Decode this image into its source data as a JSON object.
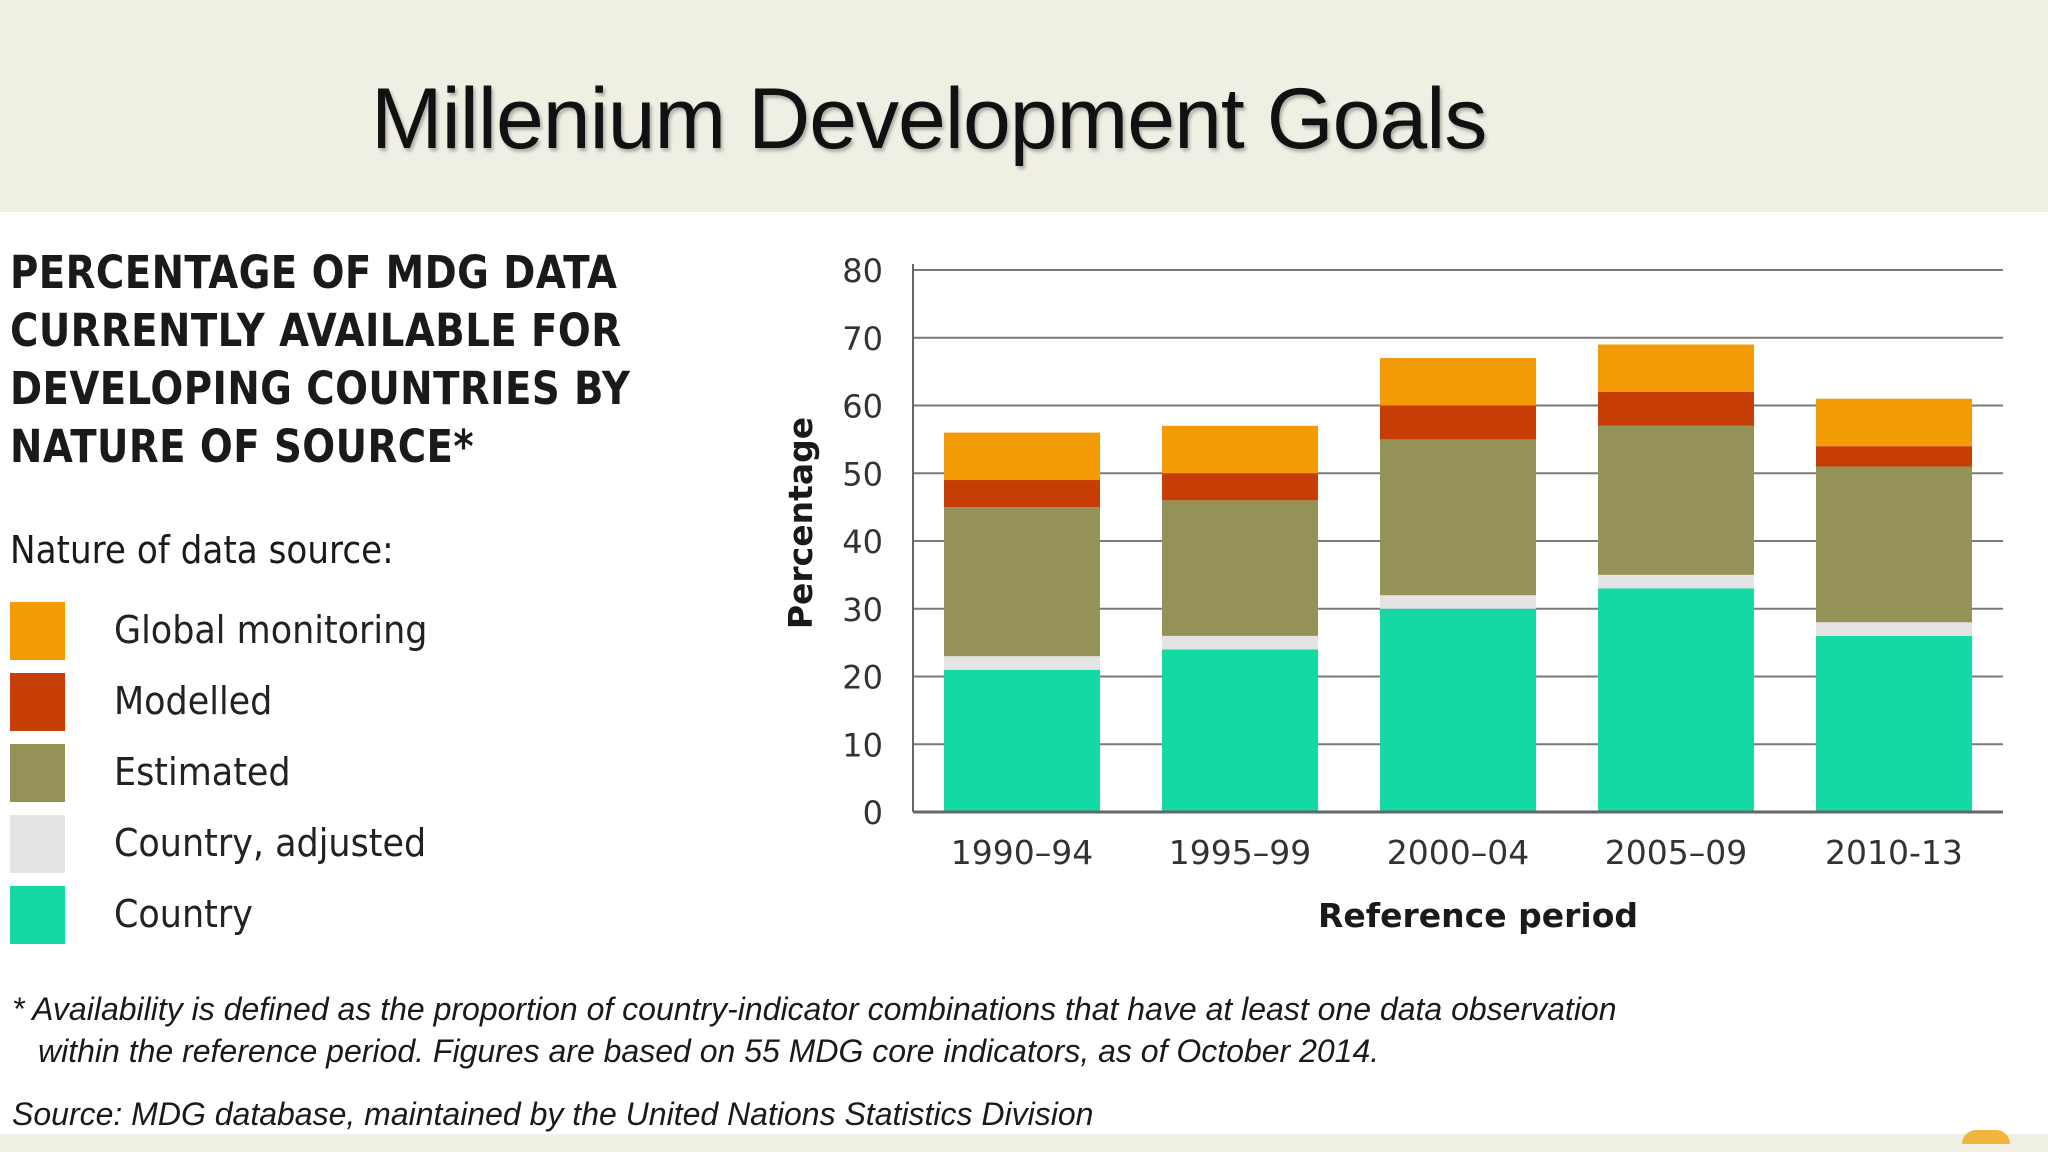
{
  "slide": {
    "title": "Millenium Development Goals"
  },
  "figure": {
    "title_lines": [
      "PERCENTAGE OF MDG DATA",
      "CURRENTLY AVAILABLE FOR",
      "DEVELOPING COUNTRIES BY",
      "NATURE OF SOURCE*"
    ],
    "legend_heading": "Nature of data source:",
    "legend": [
      {
        "label": "Global monitoring",
        "color": "#f39a07"
      },
      {
        "label": "Modelled",
        "color": "#c63e05"
      },
      {
        "label": "Estimated",
        "color": "#959258"
      },
      {
        "label": "Country, adjusted",
        "color": "#e4e4e4"
      },
      {
        "label": "Country",
        "color": "#14d9a5"
      }
    ],
    "footnote_lines": [
      "* Availability is defined as the proportion of country-indicator combinations that have at least one data observation",
      "within the reference period. Figures are based on 55 MDG core indicators, as of October 2014."
    ],
    "source": "Source: MDG database, maintained by the United Nations Statistics Division"
  },
  "chart_data": {
    "type": "bar",
    "stacked": true,
    "categories": [
      "1990–94",
      "1995–99",
      "2000–04",
      "2005–09",
      "2010-13"
    ],
    "series": [
      {
        "name": "Country",
        "color": "#14d9a5",
        "values": [
          21,
          24,
          30,
          33,
          26
        ]
      },
      {
        "name": "Country, adjusted",
        "color": "#e4e4e4",
        "values": [
          2,
          2,
          2,
          2,
          2
        ]
      },
      {
        "name": "Estimated",
        "color": "#959258",
        "values": [
          22,
          20,
          23,
          22,
          23
        ]
      },
      {
        "name": "Modelled",
        "color": "#c63e05",
        "values": [
          4,
          4,
          5,
          5,
          3
        ]
      },
      {
        "name": "Global monitoring",
        "color": "#f39a07",
        "values": [
          7,
          7,
          7,
          7,
          7
        ]
      }
    ],
    "xlabel": "Reference period",
    "ylabel": "Percentage",
    "ylim": [
      0,
      80
    ],
    "yticks": [
      0,
      10,
      20,
      30,
      40,
      50,
      60,
      70,
      80
    ],
    "grid": true,
    "legend": "left"
  }
}
